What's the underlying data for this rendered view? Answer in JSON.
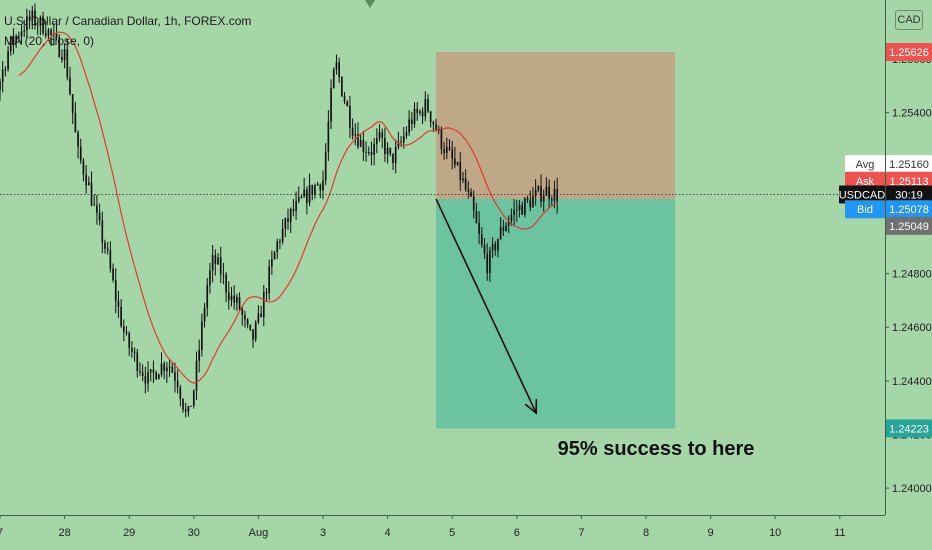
{
  "header": {
    "symbol_line": "U.S. Dollar / Canadian Dollar, 1h, FOREX.com",
    "indicator_line": "MA (20, close, 0)"
  },
  "currency_badge": "CAD",
  "annotation_text": "95% success to here",
  "colors": {
    "background": "#a5d6a7",
    "candle": "#111111",
    "ma_line": "#e53935",
    "stop_zone": "#bfa888",
    "target_zone": "#6cc39f",
    "ask_badge": "#ef5350",
    "bid_badge": "#2196f3",
    "target_badge": "#26a69a",
    "stop_badge": "#ef5350",
    "symbol_badge": "#111111",
    "low_badge": "#707070"
  },
  "chart_data": {
    "type": "candlestick",
    "symbol": "USDCAD",
    "timeframe": "1h",
    "x_ticks": [
      "7",
      "28",
      "29",
      "30",
      "Aug",
      "3",
      "4",
      "5",
      "6",
      "7",
      "8",
      "9",
      "10",
      "11"
    ],
    "y_ticks": [
      1.256,
      1.254,
      1.252,
      1.25,
      1.248,
      1.246,
      1.244,
      1.242,
      1.24
    ],
    "y_tick_labels": [
      "1.25600",
      "1.25400",
      "1.25200",
      "1.25000",
      "1.24800",
      "1.24600",
      "1.24400",
      "1.24200",
      "1.24000"
    ],
    "ylim": [
      1.239,
      1.2582
    ],
    "current_price": 1.25095,
    "price_labels": {
      "stop": {
        "label": "",
        "value": "1.25626"
      },
      "avg": {
        "label": "Avg",
        "value": "1.25160"
      },
      "ask": {
        "label": "Ask",
        "value": "1.25113"
      },
      "last": {
        "label": "USDCAD",
        "value": "30:19"
      },
      "bid": {
        "label": "Bid",
        "value": "1.25078"
      },
      "low": {
        "label": "",
        "value": "1.25049"
      },
      "target": {
        "label": "",
        "value": "1.24223"
      }
    },
    "position": {
      "entry": 1.25078,
      "stop": 1.25626,
      "target": 1.24223,
      "start_day": 6.75,
      "end_day": 10.45
    },
    "arrow": {
      "from_day": 6.75,
      "from_price": 1.25078,
      "to_day": 8.3,
      "to_price": 1.2428
    },
    "close_path": [
      [
        -0.5,
        1.256
      ],
      [
        -0.3,
        1.2542
      ],
      [
        -0.15,
        1.2544
      ],
      [
        0.0,
        1.2552
      ],
      [
        0.15,
        1.2565
      ],
      [
        0.35,
        1.2572
      ],
      [
        0.5,
        1.2575
      ],
      [
        0.7,
        1.2572
      ],
      [
        0.85,
        1.2566
      ],
      [
        1.0,
        1.2562
      ],
      [
        1.1,
        1.2545
      ],
      [
        1.2,
        1.2525
      ],
      [
        1.35,
        1.2515
      ],
      [
        1.5,
        1.25
      ],
      [
        1.65,
        1.2488
      ],
      [
        1.8,
        1.247
      ],
      [
        1.95,
        1.2455
      ],
      [
        2.1,
        1.2448
      ],
      [
        2.3,
        1.244
      ],
      [
        2.45,
        1.2445
      ],
      [
        2.6,
        1.2447
      ],
      [
        2.75,
        1.244
      ],
      [
        2.9,
        1.2425
      ],
      [
        3.0,
        1.2437
      ],
      [
        3.1,
        1.2455
      ],
      [
        3.2,
        1.2475
      ],
      [
        3.3,
        1.2485
      ],
      [
        3.4,
        1.2482
      ],
      [
        3.5,
        1.2475
      ],
      [
        3.6,
        1.247
      ],
      [
        3.7,
        1.2468
      ],
      [
        3.8,
        1.246
      ],
      [
        3.9,
        1.2455
      ],
      [
        4.0,
        1.2462
      ],
      [
        4.15,
        1.2478
      ],
      [
        4.3,
        1.2492
      ],
      [
        4.5,
        1.2502
      ],
      [
        4.7,
        1.2508
      ],
      [
        4.85,
        1.2512
      ],
      [
        5.0,
        1.2515
      ],
      [
        5.1,
        1.254
      ],
      [
        5.15,
        1.2552
      ],
      [
        5.2,
        1.2558
      ],
      [
        5.3,
        1.2548
      ],
      [
        5.45,
        1.2535
      ],
      [
        5.6,
        1.2528
      ],
      [
        5.75,
        1.2526
      ],
      [
        5.9,
        1.253
      ],
      [
        6.05,
        1.2522
      ],
      [
        6.2,
        1.2528
      ],
      [
        6.35,
        1.2537
      ],
      [
        6.5,
        1.254
      ],
      [
        6.6,
        1.2543
      ],
      [
        6.7,
        1.2537
      ],
      [
        6.85,
        1.2528
      ],
      [
        7.0,
        1.2522
      ],
      [
        7.15,
        1.2515
      ],
      [
        7.3,
        1.2505
      ],
      [
        7.45,
        1.249
      ],
      [
        7.55,
        1.2483
      ],
      [
        7.7,
        1.2493
      ],
      [
        7.85,
        1.25
      ],
      [
        8.0,
        1.2504
      ],
      [
        8.15,
        1.2506
      ],
      [
        8.3,
        1.2509
      ],
      [
        8.45,
        1.2511
      ],
      [
        8.55,
        1.251
      ],
      [
        8.65,
        1.2509
      ]
    ]
  }
}
